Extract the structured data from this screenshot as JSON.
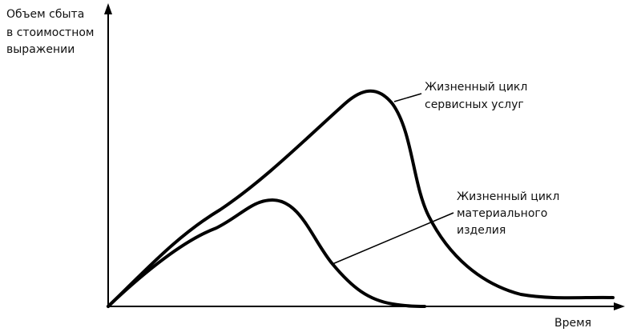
{
  "y_axis": {
    "label_lines": [
      "Объем сбыта",
      "в стоимостном",
      "выражении"
    ]
  },
  "x_axis": {
    "label": "Время"
  },
  "curves": [
    {
      "label_lines": [
        "Жизненный цикл",
        "сервисных услуг"
      ]
    },
    {
      "label_lines": [
        "Жизненный цикл",
        "материального",
        "изделия"
      ]
    }
  ]
}
